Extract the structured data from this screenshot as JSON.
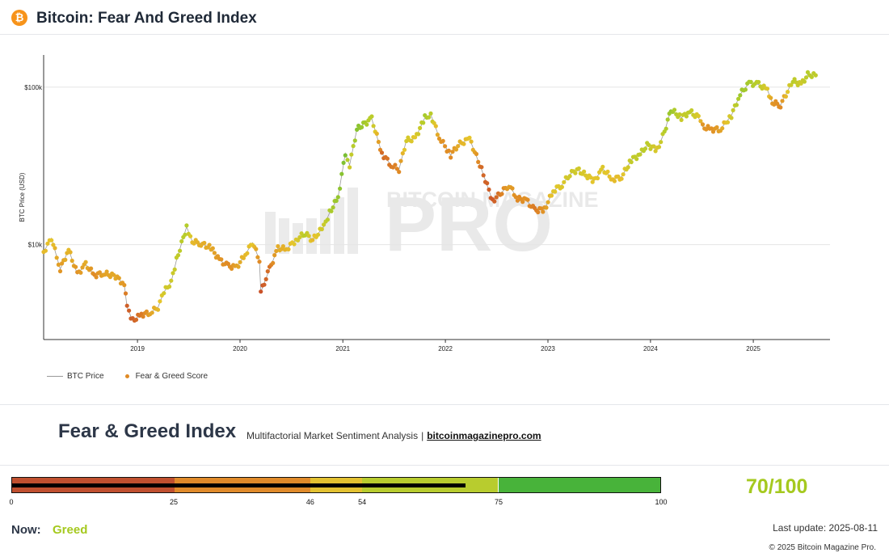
{
  "header": {
    "logo_glyph": "₿",
    "logo_icon": "bitcoin-icon",
    "title": "Bitcoin: Fear And Greed Index"
  },
  "chart_data": {
    "type": "scatter",
    "ylabel": "BTC Price (USD)",
    "y_scale": "log",
    "ylim": [
      2500,
      160000
    ],
    "x_ticks": [
      "2019",
      "2020",
      "2021",
      "2022",
      "2023",
      "2024",
      "2025"
    ],
    "y_ticks": [
      "$10k",
      "$100k"
    ],
    "watermark": {
      "line1": "BITCOIN MAGAZINE",
      "line2": "PRO"
    },
    "grid": "horizontal",
    "legend_position": "bottom-left",
    "series": [
      {
        "name": "BTC Price",
        "kind": "line",
        "color": "#999999",
        "points": [
          [
            "2018-02-01",
            9000
          ],
          [
            "2018-03-01",
            11000
          ],
          [
            "2018-04-01",
            7000
          ],
          [
            "2018-05-01",
            9300
          ],
          [
            "2018-06-01",
            6500
          ],
          [
            "2018-07-01",
            7500
          ],
          [
            "2018-08-01",
            6400
          ],
          [
            "2018-09-01",
            6600
          ],
          [
            "2018-10-15",
            6300
          ],
          [
            "2018-11-15",
            5600
          ],
          [
            "2018-11-25",
            4000
          ],
          [
            "2018-12-15",
            3300
          ],
          [
            "2019-01-15",
            3600
          ],
          [
            "2019-02-15",
            3700
          ],
          [
            "2019-03-15",
            4000
          ],
          [
            "2019-04-05",
            5000
          ],
          [
            "2019-05-01",
            5800
          ],
          [
            "2019-05-20",
            8000
          ],
          [
            "2019-06-25",
            13000
          ],
          [
            "2019-07-15",
            10500
          ],
          [
            "2019-08-15",
            10200
          ],
          [
            "2019-09-20",
            9500
          ],
          [
            "2019-10-20",
            8000
          ],
          [
            "2019-11-20",
            7300
          ],
          [
            "2019-12-20",
            7200
          ],
          [
            "2020-01-20",
            8700
          ],
          [
            "2020-02-15",
            10300
          ],
          [
            "2020-03-10",
            8000
          ],
          [
            "2020-03-15",
            5000
          ],
          [
            "2020-04-15",
            7000
          ],
          [
            "2020-05-15",
            9500
          ],
          [
            "2020-06-15",
            9400
          ],
          [
            "2020-07-25",
            11000
          ],
          [
            "2020-08-20",
            11800
          ],
          [
            "2020-09-15",
            10700
          ],
          [
            "2020-10-25",
            13000
          ],
          [
            "2020-11-15",
            16000
          ],
          [
            "2020-12-15",
            20000
          ],
          [
            "2021-01-10",
            38000
          ],
          [
            "2021-01-25",
            32000
          ],
          [
            "2021-02-20",
            54000
          ],
          [
            "2021-03-15",
            58000
          ],
          [
            "2021-04-14",
            63000
          ],
          [
            "2021-05-20",
            38000
          ],
          [
            "2021-06-22",
            32000
          ],
          [
            "2021-07-20",
            30000
          ],
          [
            "2021-08-15",
            46000
          ],
          [
            "2021-09-15",
            47000
          ],
          [
            "2021-10-20",
            64000
          ],
          [
            "2021-11-10",
            67000
          ],
          [
            "2021-12-10",
            48000
          ],
          [
            "2022-01-20",
            37000
          ],
          [
            "2022-02-15",
            43000
          ],
          [
            "2022-03-28",
            47000
          ],
          [
            "2022-05-10",
            30000
          ],
          [
            "2022-06-18",
            19000
          ],
          [
            "2022-07-15",
            21000
          ],
          [
            "2022-08-15",
            24000
          ],
          [
            "2022-09-15",
            19500
          ],
          [
            "2022-10-15",
            19300
          ],
          [
            "2022-11-15",
            16500
          ],
          [
            "2022-12-20",
            16800
          ],
          [
            "2023-01-20",
            22000
          ],
          [
            "2023-02-20",
            24000
          ],
          [
            "2023-03-20",
            28000
          ],
          [
            "2023-04-15",
            30000
          ],
          [
            "2023-06-15",
            25500
          ],
          [
            "2023-07-15",
            30300
          ],
          [
            "2023-08-20",
            26000
          ],
          [
            "2023-09-20",
            27000
          ],
          [
            "2023-10-25",
            34500
          ],
          [
            "2023-11-25",
            37500
          ],
          [
            "2023-12-20",
            43000
          ],
          [
            "2024-01-25",
            40000
          ],
          [
            "2024-02-20",
            52000
          ],
          [
            "2024-03-14",
            72000
          ],
          [
            "2024-04-20",
            64000
          ],
          [
            "2024-05-20",
            70000
          ],
          [
            "2024-06-20",
            64000
          ],
          [
            "2024-07-05",
            56000
          ],
          [
            "2024-08-05",
            54000
          ],
          [
            "2024-09-06",
            54000
          ],
          [
            "2024-10-15",
            66000
          ],
          [
            "2024-11-15",
            90000
          ],
          [
            "2024-12-17",
            106000
          ],
          [
            "2025-01-20",
            104000
          ],
          [
            "2025-02-20",
            96000
          ],
          [
            "2025-03-10",
            80000
          ],
          [
            "2025-04-08",
            77000
          ],
          [
            "2025-05-22",
            110000
          ],
          [
            "2025-06-20",
            104000
          ],
          [
            "2025-07-14",
            120000
          ],
          [
            "2025-08-11",
            119000
          ]
        ]
      },
      {
        "name": "Fear & Greed Score",
        "kind": "scatter",
        "color": "#e08a25",
        "color_scale": [
          "#c0392b",
          "#e08a25",
          "#e6c52b",
          "#b5cd2a",
          "#44b33a"
        ],
        "points": [
          [
            "2018-02-01",
            9000,
            45
          ],
          [
            "2018-03-01",
            11000,
            50
          ],
          [
            "2018-04-01",
            7000,
            30
          ],
          [
            "2018-05-01",
            9300,
            45
          ],
          [
            "2018-06-01",
            6500,
            28
          ],
          [
            "2018-07-01",
            7500,
            40
          ],
          [
            "2018-08-01",
            6400,
            25
          ],
          [
            "2018-09-01",
            6600,
            35
          ],
          [
            "2018-10-15",
            6300,
            38
          ],
          [
            "2018-11-15",
            5600,
            30
          ],
          [
            "2018-11-25",
            4000,
            12
          ],
          [
            "2018-12-15",
            3300,
            12
          ],
          [
            "2019-01-15",
            3600,
            20
          ],
          [
            "2019-02-15",
            3700,
            35
          ],
          [
            "2019-03-15",
            4000,
            45
          ],
          [
            "2019-04-05",
            5000,
            60
          ],
          [
            "2019-05-01",
            5800,
            62
          ],
          [
            "2019-05-20",
            8000,
            68
          ],
          [
            "2019-06-25",
            13000,
            75
          ],
          [
            "2019-07-15",
            10500,
            45
          ],
          [
            "2019-08-15",
            10200,
            40
          ],
          [
            "2019-09-20",
            9500,
            38
          ],
          [
            "2019-10-20",
            8000,
            30
          ],
          [
            "2019-11-20",
            7300,
            25
          ],
          [
            "2019-12-20",
            7200,
            35
          ],
          [
            "2020-01-20",
            8700,
            45
          ],
          [
            "2020-02-15",
            10300,
            50
          ],
          [
            "2020-03-10",
            8000,
            25
          ],
          [
            "2020-03-15",
            5000,
            8
          ],
          [
            "2020-04-15",
            7000,
            18
          ],
          [
            "2020-05-15",
            9500,
            40
          ],
          [
            "2020-06-15",
            9400,
            42
          ],
          [
            "2020-07-25",
            11000,
            58
          ],
          [
            "2020-08-20",
            11800,
            74
          ],
          [
            "2020-09-15",
            10700,
            45
          ],
          [
            "2020-10-25",
            13000,
            65
          ],
          [
            "2020-11-15",
            16000,
            76
          ],
          [
            "2020-12-15",
            20000,
            82
          ],
          [
            "2021-01-10",
            38000,
            88
          ],
          [
            "2021-01-25",
            32000,
            62
          ],
          [
            "2021-02-20",
            54000,
            85
          ],
          [
            "2021-03-15",
            58000,
            80
          ],
          [
            "2021-04-14",
            63000,
            72
          ],
          [
            "2021-05-20",
            38000,
            15
          ],
          [
            "2021-06-22",
            32000,
            20
          ],
          [
            "2021-07-20",
            30000,
            25
          ],
          [
            "2021-08-15",
            46000,
            60
          ],
          [
            "2021-09-15",
            47000,
            52
          ],
          [
            "2021-10-20",
            64000,
            78
          ],
          [
            "2021-11-10",
            67000,
            72
          ],
          [
            "2021-12-10",
            48000,
            30
          ],
          [
            "2022-01-20",
            37000,
            25
          ],
          [
            "2022-02-15",
            43000,
            40
          ],
          [
            "2022-03-28",
            47000,
            50
          ],
          [
            "2022-05-10",
            30000,
            15
          ],
          [
            "2022-06-18",
            19000,
            10
          ],
          [
            "2022-07-15",
            21000,
            20
          ],
          [
            "2022-08-15",
            24000,
            35
          ],
          [
            "2022-09-15",
            19500,
            25
          ],
          [
            "2022-10-15",
            19300,
            28
          ],
          [
            "2022-11-15",
            16500,
            20
          ],
          [
            "2022-12-20",
            16800,
            30
          ],
          [
            "2023-01-20",
            22000,
            52
          ],
          [
            "2023-02-20",
            24000,
            55
          ],
          [
            "2023-03-20",
            28000,
            62
          ],
          [
            "2023-04-15",
            30000,
            62
          ],
          [
            "2023-06-15",
            25500,
            50
          ],
          [
            "2023-07-15",
            30300,
            55
          ],
          [
            "2023-08-20",
            26000,
            45
          ],
          [
            "2023-09-20",
            27000,
            48
          ],
          [
            "2023-10-25",
            34500,
            68
          ],
          [
            "2023-11-25",
            37500,
            70
          ],
          [
            "2023-12-20",
            43000,
            72
          ],
          [
            "2024-01-25",
            40000,
            55
          ],
          [
            "2024-02-20",
            52000,
            74
          ],
          [
            "2024-03-14",
            72000,
            82
          ],
          [
            "2024-04-20",
            64000,
            65
          ],
          [
            "2024-05-20",
            70000,
            72
          ],
          [
            "2024-06-20",
            64000,
            55
          ],
          [
            "2024-07-05",
            56000,
            30
          ],
          [
            "2024-08-05",
            54000,
            28
          ],
          [
            "2024-09-06",
            54000,
            35
          ],
          [
            "2024-10-15",
            66000,
            62
          ],
          [
            "2024-11-15",
            90000,
            80
          ],
          [
            "2024-12-17",
            106000,
            78
          ],
          [
            "2025-01-20",
            104000,
            72
          ],
          [
            "2025-02-20",
            96000,
            55
          ],
          [
            "2025-03-10",
            80000,
            30
          ],
          [
            "2025-04-08",
            77000,
            25
          ],
          [
            "2025-05-22",
            110000,
            72
          ],
          [
            "2025-06-20",
            104000,
            62
          ],
          [
            "2025-07-14",
            120000,
            74
          ],
          [
            "2025-08-11",
            119000,
            70
          ]
        ]
      }
    ]
  },
  "index": {
    "title": "Fear & Greed Index",
    "subtitle": "Multifactorial Market Sentiment Analysis",
    "separator": "|",
    "link": "bitcoinmagazinepro.com",
    "score_text": "70/100",
    "score_value": 70,
    "gauge": {
      "segments": [
        {
          "from": 0,
          "to": 25,
          "color": "#c0502f"
        },
        {
          "from": 25,
          "to": 46,
          "color": "#e08a2a"
        },
        {
          "from": 46,
          "to": 54,
          "color": "#e3c131"
        },
        {
          "from": 54,
          "to": 75,
          "color": "#b8cc2e"
        },
        {
          "from": 75,
          "to": 100,
          "color": "#48b33a"
        }
      ],
      "ticks": [
        "0",
        "25",
        "46",
        "54",
        "75",
        "100"
      ]
    },
    "now_label": "Now:",
    "now_value": "Greed",
    "last_update": "Last update: 2025-08-11",
    "copyright": "© 2025 Bitcoin Magazine Pro."
  }
}
